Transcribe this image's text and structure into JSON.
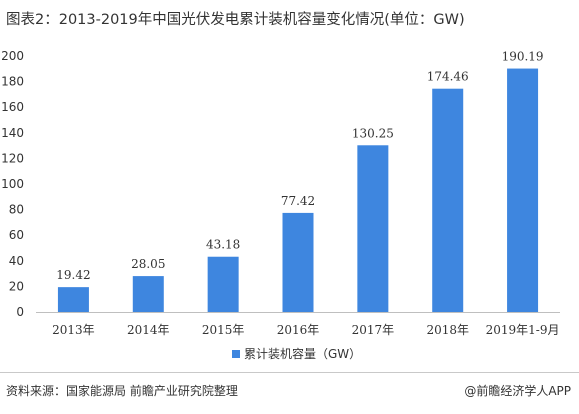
{
  "header": {
    "title": "图表2：2013-2019年中国光伏发电累计装机容量变化情况(单位：GW)"
  },
  "chart_data": {
    "type": "bar",
    "categories": [
      "2013年",
      "2014年",
      "2015年",
      "2016年",
      "2017年",
      "2018年",
      "2019年1-9月"
    ],
    "series": [
      {
        "name": "累计装机容量（GW）",
        "values": [
          19.42,
          28.05,
          43.18,
          77.42,
          130.25,
          174.46,
          190.19
        ],
        "color": "#3E86DF"
      }
    ],
    "value_labels": [
      "19.42",
      "28.05",
      "43.18",
      "77.42",
      "130.25",
      "174.46",
      "190.19"
    ],
    "ylim": [
      0,
      200
    ],
    "yticks": [
      "0",
      "20",
      "40",
      "60",
      "80",
      "100",
      "120",
      "140",
      "160",
      "180",
      "200"
    ],
    "grid": false,
    "legend_position": "bottom-center"
  },
  "footer": {
    "source": "资料来源：国家能源局 前瞻产业研究院整理",
    "credit": "@前瞻经济学人APP"
  }
}
